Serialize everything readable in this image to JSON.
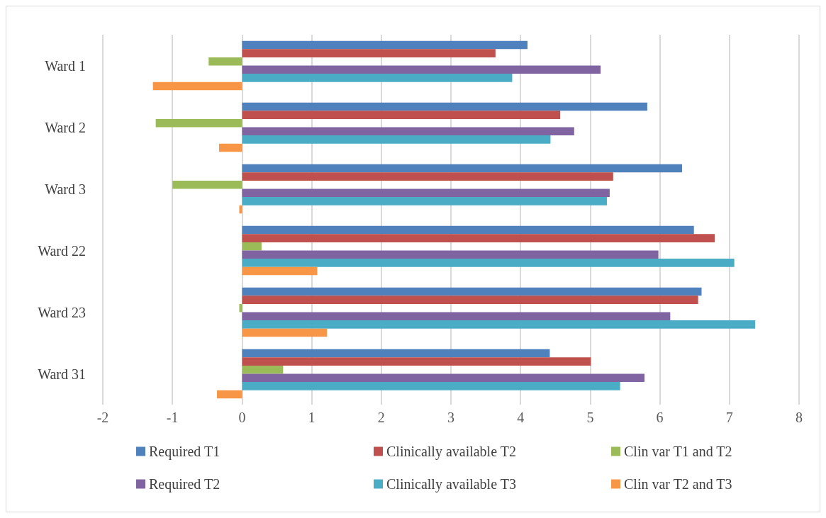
{
  "chart_data": {
    "type": "bar",
    "orientation": "horizontal",
    "categories": [
      "Ward 1",
      "Ward 2",
      "Ward 3",
      "Ward 22",
      "Ward 23",
      "Ward 31"
    ],
    "series": [
      {
        "name": "Required T1",
        "color": "#4f81bd",
        "values": [
          4.1,
          5.82,
          6.32,
          6.49,
          6.6,
          4.42
        ]
      },
      {
        "name": "Clinically available T2",
        "color": "#c0504d",
        "values": [
          3.64,
          4.57,
          5.33,
          6.79,
          6.55,
          5.01
        ]
      },
      {
        "name": "Clin var T1 and T2",
        "color": "#9bbb59",
        "values": [
          -0.48,
          -1.24,
          -1.0,
          0.28,
          -0.04,
          0.59
        ]
      },
      {
        "name": "Required T2",
        "color": "#8064a2",
        "values": [
          5.15,
          4.77,
          5.28,
          5.98,
          6.15,
          5.78
        ]
      },
      {
        "name": "Clinically available T3",
        "color": "#4bacc6",
        "values": [
          3.88,
          4.43,
          5.24,
          7.07,
          7.37,
          5.43
        ]
      },
      {
        "name": "Clin var T2 and T3",
        "color": "#f79646",
        "values": [
          -1.28,
          -0.33,
          -0.04,
          1.08,
          1.22,
          -0.36
        ]
      }
    ],
    "xlim": [
      -2,
      8
    ],
    "xticks": [
      -2,
      -1,
      0,
      1,
      2,
      3,
      4,
      5,
      6,
      7,
      8
    ],
    "grid": "x",
    "legend": "bottom"
  }
}
